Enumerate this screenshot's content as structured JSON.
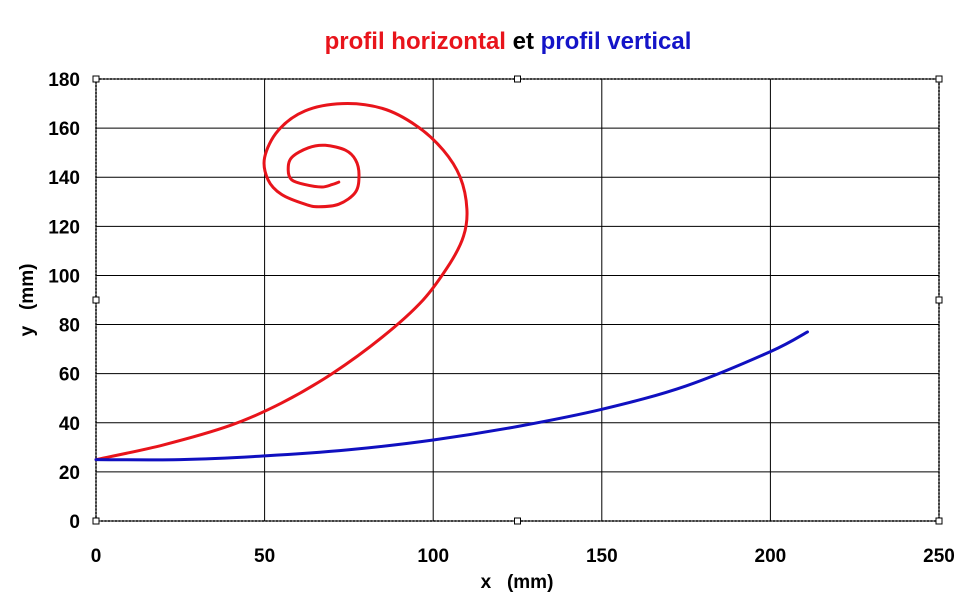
{
  "title": {
    "part1": "profil horizontal",
    "part2": " et ",
    "part3": "profil vertical",
    "part1_color": "#e8141b",
    "part2_color": "#000000",
    "part3_color": "#1414c8"
  },
  "chart_data": {
    "type": "line",
    "xlabel": "x   (mm)",
    "ylabel": "y   (mm)",
    "xlim": [
      0,
      250
    ],
    "ylim": [
      0,
      180
    ],
    "x_ticks": [
      0,
      50,
      100,
      150,
      200,
      250
    ],
    "y_ticks": [
      0,
      20,
      40,
      60,
      80,
      100,
      120,
      140,
      160,
      180
    ],
    "grid": true,
    "series": [
      {
        "name": "profil horizontal",
        "color": "#e8141b",
        "x": [
          0,
          20,
          40,
          55,
          70,
          85,
          97,
          105,
          109,
          110,
          108,
          103,
          95,
          85,
          73,
          62,
          54,
          50,
          51,
          55,
          62,
          66,
          72,
          77,
          78,
          77,
          74,
          68,
          63,
          58,
          57,
          58,
          62,
          67,
          70,
          72
        ],
        "y": [
          25,
          31,
          39,
          48,
          60,
          75,
          90,
          105,
          116,
          127,
          140,
          151,
          161,
          168,
          170,
          167,
          159,
          148,
          139,
          133,
          129,
          128,
          129,
          134,
          141,
          147,
          151,
          153,
          152,
          148,
          143,
          139,
          137,
          136,
          137,
          138
        ]
      },
      {
        "name": "profil vertical",
        "color": "#1010c0",
        "x": [
          0,
          25,
          50,
          75,
          100,
          125,
          150,
          175,
          200,
          211
        ],
        "y": [
          25,
          25,
          26.5,
          29,
          33,
          38.5,
          45.5,
          55,
          69,
          77
        ]
      }
    ]
  }
}
